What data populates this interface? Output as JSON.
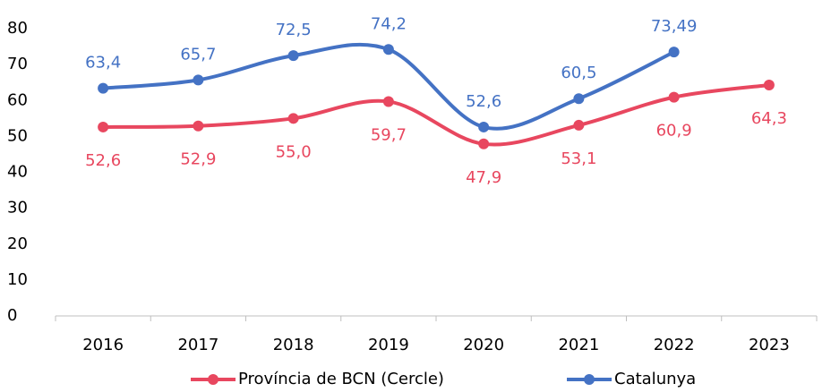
{
  "chart_data": {
    "type": "line",
    "categories": [
      "2016",
      "2017",
      "2018",
      "2019",
      "2020",
      "2021",
      "2022",
      "2023"
    ],
    "series": [
      {
        "name": "Província de BCN (Cercle)",
        "color": "#e8475f",
        "values": [
          52.6,
          52.9,
          55.0,
          59.7,
          47.9,
          53.1,
          60.9,
          64.3
        ],
        "value_labels": [
          "52,6",
          "52,9",
          "55,0",
          "59,7",
          "47,9",
          "53,1",
          "60,9",
          "64,3"
        ]
      },
      {
        "name": "Catalunya",
        "color": "#4472c4",
        "values": [
          63.4,
          65.7,
          72.5,
          74.2,
          52.6,
          60.5,
          73.49,
          null
        ],
        "value_labels": [
          "63,4",
          "65,7",
          "72,5",
          "74,2",
          "52,6",
          "60,5",
          "73,49",
          null
        ]
      }
    ],
    "ylim": [
      0,
      80
    ],
    "yticks": [
      0,
      10,
      20,
      30,
      40,
      50,
      60,
      70,
      80
    ],
    "smooth": true,
    "legend": "bottom"
  }
}
